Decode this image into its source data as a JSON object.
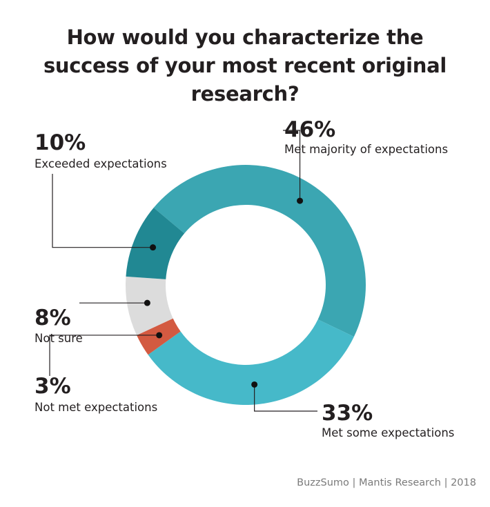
{
  "title_lines": [
    "How would you characterize the",
    "success of your most recent original",
    "research?"
  ],
  "chart_data": {
    "type": "pie",
    "donut": true,
    "title": "How would you characterize the success of your most recent original research?",
    "slices": [
      {
        "label": "Met majority of expectations",
        "value": 46,
        "display": "46%",
        "color": "#3ba6b2"
      },
      {
        "label": "Met some expectations",
        "value": 33,
        "display": "33%",
        "color": "#46b9c9"
      },
      {
        "label": "Not met expectations",
        "value": 3,
        "display": "3%",
        "color": "#d35a41"
      },
      {
        "label": "Not sure",
        "value": 8,
        "display": "8%",
        "color": "#dcdcdc"
      },
      {
        "label": "Exceeded expectations",
        "value": 10,
        "display": "10%",
        "color": "#218893"
      }
    ]
  },
  "source": "BuzzSumo | Mantis Research | 2018"
}
